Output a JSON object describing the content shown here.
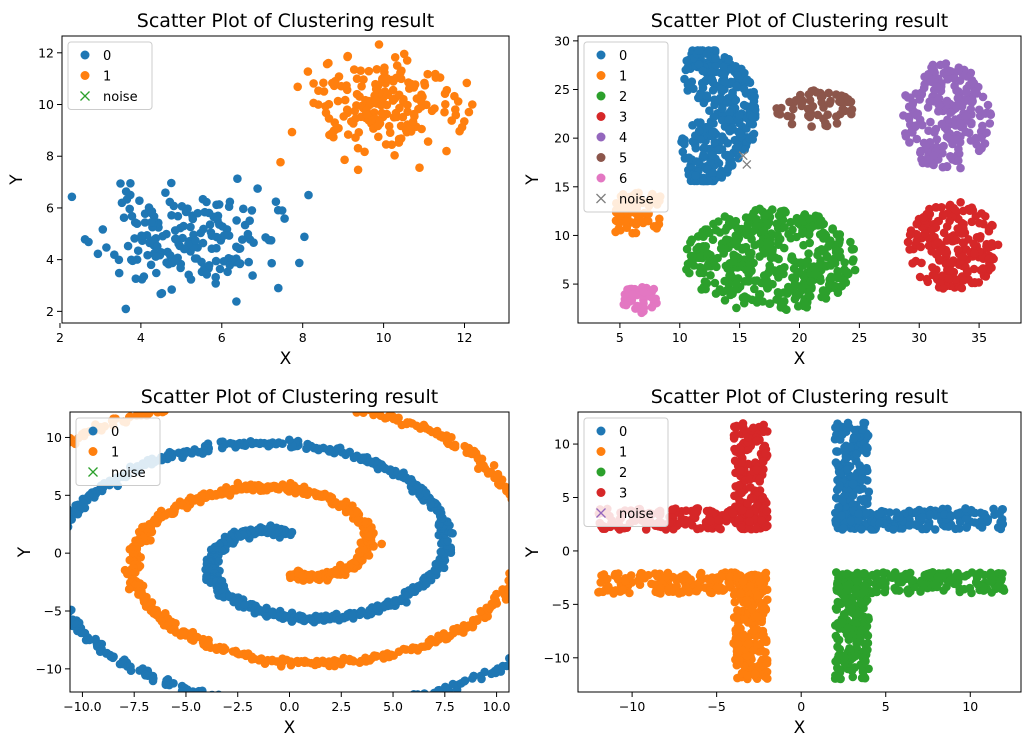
{
  "figure": {
    "title": ""
  },
  "chart_data": [
    {
      "type": "scatter",
      "title": "Scatter Plot of Clustering result",
      "xlabel": "X",
      "ylabel": "Y",
      "xlim": [
        2.05,
        13.1
      ],
      "ylim": [
        1.55,
        12.65
      ],
      "xticks": [
        2,
        4,
        6,
        8,
        10,
        12
      ],
      "yticks": [
        2,
        4,
        6,
        8,
        10,
        12
      ],
      "legend": {
        "position": "top-left",
        "entries": [
          "0",
          "1",
          "noise"
        ]
      },
      "series": [
        {
          "name": "0",
          "color": "#1f77b4",
          "marker": "circle",
          "shape": "blob",
          "count": 180,
          "center": [
            5.1,
            4.8
          ],
          "spread": [
            1.05,
            0.95
          ],
          "seed": 11
        },
        {
          "name": "1",
          "color": "#ff7f0e",
          "marker": "circle",
          "shape": "blob",
          "count": 190,
          "center": [
            9.9,
            9.9
          ],
          "spread": [
            0.95,
            0.95
          ],
          "seed": 23
        },
        {
          "name": "noise",
          "color": "#2ca02c",
          "marker": "x",
          "points": []
        }
      ]
    },
    {
      "type": "scatter",
      "title": "Scatter Plot of Clustering result",
      "xlabel": "X",
      "ylabel": "Y",
      "xlim": [
        1.5,
        38.5
      ],
      "ylim": [
        1.0,
        30.5
      ],
      "xticks": [
        5,
        10,
        15,
        20,
        25,
        30,
        35
      ],
      "yticks": [
        5,
        10,
        15,
        20,
        25,
        30
      ],
      "legend": {
        "position": "top-left",
        "entries": [
          "0",
          "1",
          "2",
          "3",
          "4",
          "5",
          "6",
          "noise"
        ]
      },
      "series": [
        {
          "name": "0",
          "color": "#1f77b4",
          "marker": "circle",
          "shape": "fan",
          "count": 330,
          "center": [
            9.5,
            22.5
          ],
          "seed": 31
        },
        {
          "name": "1",
          "color": "#ff7f0e",
          "marker": "circle",
          "shape": "rect",
          "count": 70,
          "xrange": [
            4.6,
            8.4
          ],
          "yrange": [
            10.2,
            14.4
          ],
          "seed": 37
        },
        {
          "name": "2",
          "color": "#2ca02c",
          "marker": "circle",
          "shape": "ellipse",
          "count": 430,
          "center": [
            17.6,
            7.5
          ],
          "radii": [
            7.2,
            5.4
          ],
          "seed": 41
        },
        {
          "name": "3",
          "color": "#d62728",
          "marker": "circle",
          "shape": "ellipse",
          "count": 200,
          "center": [
            32.8,
            8.9
          ],
          "radii": [
            3.8,
            4.6
          ],
          "seed": 43
        },
        {
          "name": "4",
          "color": "#9467bd",
          "marker": "circle",
          "shape": "ellipse",
          "count": 230,
          "center": [
            32.2,
            22.2
          ],
          "radii": [
            3.8,
            5.6
          ],
          "seed": 47
        },
        {
          "name": "5",
          "color": "#8c564b",
          "marker": "circle",
          "shape": "ellipse",
          "count": 60,
          "center": [
            21.3,
            23.0
          ],
          "radii": [
            3.3,
            2.0
          ],
          "seed": 53
        },
        {
          "name": "6",
          "color": "#e377c2",
          "marker": "circle",
          "shape": "ellipse",
          "count": 40,
          "center": [
            6.7,
            3.4
          ],
          "radii": [
            1.7,
            1.5
          ],
          "seed": 59
        },
        {
          "name": "noise",
          "color": "#7f7f7f",
          "marker": "x",
          "points": [
            [
              15.3,
              18.2
            ],
            [
              15.6,
              17.3
            ]
          ]
        }
      ]
    },
    {
      "type": "scatter",
      "title": "Scatter Plot of Clustering result",
      "xlabel": "X",
      "ylabel": "Y",
      "xlim": [
        -10.6,
        10.6
      ],
      "ylim": [
        -12.0,
        12.2
      ],
      "xticks": [
        -10.0,
        -7.5,
        -5.0,
        -2.5,
        0.0,
        2.5,
        5.0,
        7.5,
        10.0
      ],
      "xticklabels": [
        "−10.0",
        "−7.5",
        "−5.0",
        "−2.5",
        "0.0",
        "2.5",
        "5.0",
        "7.5",
        "10.0"
      ],
      "yticks": [
        -10,
        -5,
        0,
        5,
        10
      ],
      "yticklabels": [
        "−10",
        "−5",
        "0",
        "5",
        "10"
      ],
      "legend": {
        "position": "top-left",
        "entries": [
          "0",
          "1",
          "noise"
        ]
      },
      "series": [
        {
          "name": "0",
          "color": "#1f77b4",
          "marker": "circle",
          "shape": "spiral",
          "count": 900,
          "theta_range": [
            1.6,
            12.2
          ],
          "phase": 0,
          "scale": 1.23,
          "seed": 61
        },
        {
          "name": "1",
          "color": "#ff7f0e",
          "marker": "circle",
          "shape": "spiral",
          "count": 900,
          "theta_range": [
            1.6,
            12.2
          ],
          "phase": 3.14159,
          "scale": 1.23,
          "seed": 67
        },
        {
          "name": "noise",
          "color": "#2ca02c",
          "marker": "x",
          "points": []
        }
      ]
    },
    {
      "type": "scatter",
      "title": "Scatter Plot of Clustering result",
      "xlabel": "X",
      "ylabel": "Y",
      "xlim": [
        -13.2,
        13.0
      ],
      "ylim": [
        -13.2,
        13.0
      ],
      "xticks": [
        -10,
        -5,
        0,
        5,
        10
      ],
      "xticklabels": [
        "−10",
        "−5",
        "0",
        "5",
        "10"
      ],
      "yticks": [
        -10,
        -5,
        0,
        5,
        10
      ],
      "yticklabels": [
        "−10",
        "−5",
        "0",
        "5",
        "10"
      ],
      "legend": {
        "position": "top-left",
        "entries": [
          "0",
          "1",
          "2",
          "3",
          "noise"
        ]
      },
      "series": [
        {
          "name": "0",
          "color": "#1f77b4",
          "marker": "circle",
          "shape": "L",
          "count": 350,
          "corner": [
            2.0,
            2.0
          ],
          "armx": 12.0,
          "army": 12.0,
          "width": 2.0,
          "seed": 71
        },
        {
          "name": "1",
          "color": "#ff7f0e",
          "marker": "circle",
          "shape": "L",
          "count": 350,
          "corner": [
            -2.0,
            -2.0
          ],
          "armx": -12.0,
          "army": -12.0,
          "width": 2.0,
          "seed": 73
        },
        {
          "name": "2",
          "color": "#2ca02c",
          "marker": "circle",
          "shape": "L",
          "count": 350,
          "corner": [
            2.0,
            -2.0
          ],
          "armx": 12.0,
          "army": -12.0,
          "width": 2.0,
          "seed": 79
        },
        {
          "name": "3",
          "color": "#d62728",
          "marker": "circle",
          "shape": "L",
          "count": 350,
          "corner": [
            -2.0,
            2.0
          ],
          "armx": -12.0,
          "army": 12.0,
          "width": 2.0,
          "seed": 83
        },
        {
          "name": "noise",
          "color": "#9467bd",
          "marker": "x",
          "points": []
        }
      ]
    }
  ]
}
